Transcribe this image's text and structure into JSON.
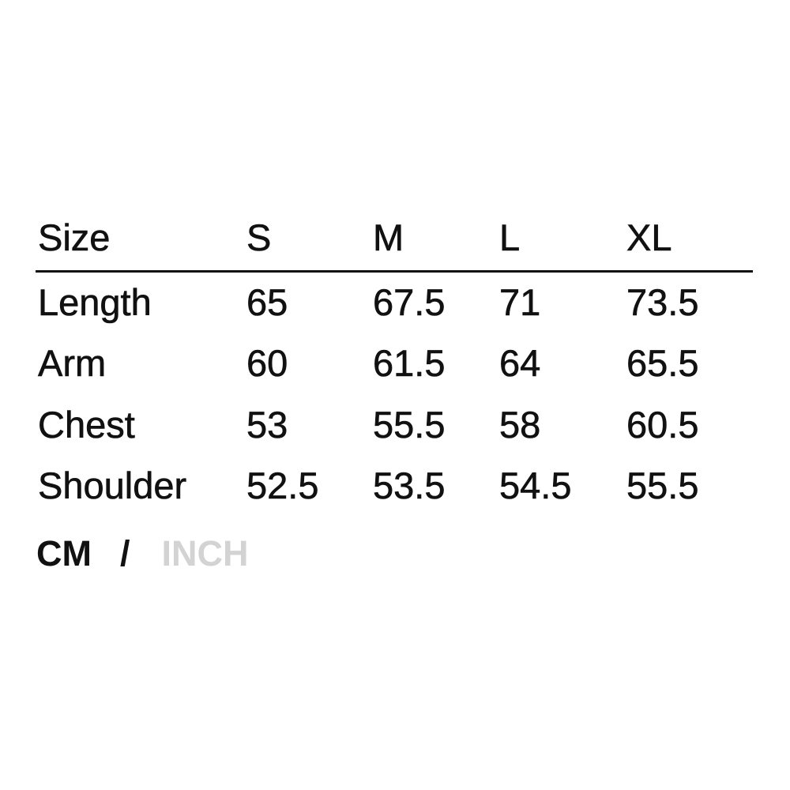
{
  "size_chart": {
    "header": [
      "Size",
      "S",
      "M",
      "L",
      "XL"
    ],
    "rows": [
      {
        "label": "Length",
        "values": [
          "65",
          "67.5",
          "71",
          "73.5"
        ]
      },
      {
        "label": "Arm",
        "values": [
          "60",
          "61.5",
          "64",
          "65.5"
        ]
      },
      {
        "label": "Chest",
        "values": [
          "53",
          "55.5",
          "58",
          "60.5"
        ]
      },
      {
        "label": "Shoulder",
        "values": [
          "52.5",
          "53.5",
          "54.5",
          "55.5"
        ]
      }
    ]
  },
  "units": {
    "active": "CM",
    "separator": "/",
    "inactive": "INCH",
    "active_color": "#111111",
    "inactive_color": "#d3d3d3"
  }
}
